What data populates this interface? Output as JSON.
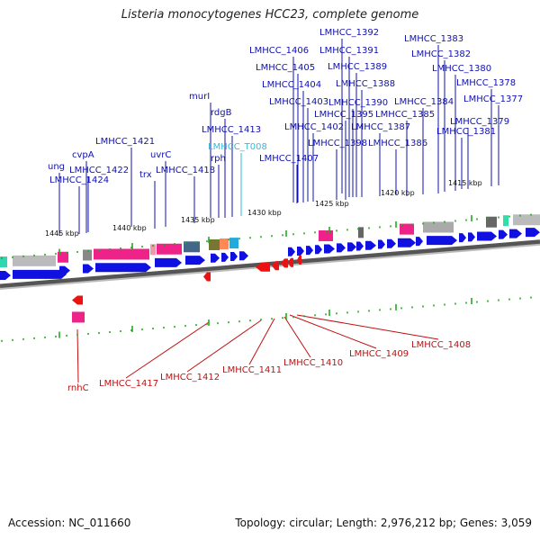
{
  "title": "Listeria monocytogenes HCC23, complete genome",
  "footer": {
    "accession": "Accession: NC_011660",
    "summary": "Topology: circular; Length: 2,976,212 bp; Genes: 3,059"
  },
  "colors": {
    "forward_gene": "#1010e0",
    "reverse_gene": "#ee1111",
    "forward_label": "#1010b0",
    "reverse_label": "#c01010",
    "rna_label": "#33bbd6",
    "tick": "#22aa22",
    "backbone": "#888888"
  },
  "ticks": [
    "1445 kbp",
    "1440 kbp",
    "1435 kbp",
    "1430 kbp",
    "1425 kbp",
    "1420 kbp",
    "1415 kbp"
  ],
  "forward_labels": [
    "LMHCC_1392",
    "LMHCC_1383",
    "LMHCC_1406",
    "LMHCC_1391",
    "LMHCC_1382",
    "LMHCC_1405",
    "LMHCC_1389",
    "LMHCC_1380",
    "LMHCC_1404",
    "LMHCC_1388",
    "LMHCC_1378",
    "LMHCC_1403",
    "LMHCC_1390",
    "LMHCC_1384",
    "LMHCC_1377",
    "LMHCC_1395",
    "LMHCC_1385",
    "LMHCC_1379",
    "LMHCC_1402",
    "LMHCC_1387",
    "LMHCC_1381",
    "LMHCC_1398",
    "LMHCC_1386",
    "LMHCC_1407",
    "murI",
    "rdgB",
    "LMHCC_1413",
    "LMHCC_1421",
    "LMHCC_T008",
    "uvrC",
    "rph",
    "trx",
    "LMHCC_1418",
    "ung",
    "cvpA",
    "LMHCC_1422",
    "LMHCC_1424"
  ],
  "rna_labels": [
    "LMHCC_T008"
  ],
  "reverse_labels": [
    "LMHCC_1408",
    "LMHCC_1409",
    "LMHCC_1410",
    "LMHCC_1411",
    "LMHCC_1412",
    "LMHCC_1417",
    "rnhC"
  ]
}
